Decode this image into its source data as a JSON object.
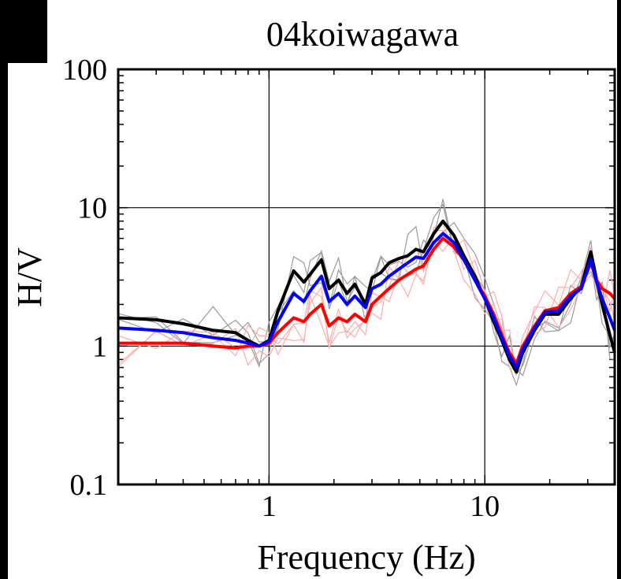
{
  "chart_data": {
    "type": "line",
    "title": "04koiwagawa",
    "xlabel": "Frequency (Hz)",
    "ylabel": "H/V",
    "x_scale": "log",
    "y_scale": "log",
    "xlim": [
      0.2,
      40
    ],
    "ylim": [
      0.1,
      100
    ],
    "x_ticks": [
      "1",
      "10"
    ],
    "y_ticks": [
      "0.1",
      "1",
      "10",
      "100"
    ],
    "grid": true,
    "series": [
      {
        "color": "#000000",
        "x": [
          0.2,
          0.3,
          0.4,
          0.55,
          0.7,
          0.8,
          0.9,
          1.0,
          1.1,
          1.3,
          1.45,
          1.55,
          1.75,
          1.9,
          2.1,
          2.3,
          2.5,
          2.8,
          3.0,
          3.3,
          3.6,
          4.0,
          4.4,
          4.8,
          5.2,
          5.8,
          6.4,
          7.2,
          8.0,
          9.0,
          10.0,
          11.0,
          12.0,
          13.0,
          14.0,
          15.0,
          17.0,
          19.0,
          22.0,
          25.0,
          28.0,
          31.0,
          33.0,
          35.0,
          38.0,
          40.0
        ],
        "y": [
          1.6,
          1.55,
          1.45,
          1.3,
          1.25,
          1.1,
          1.0,
          1.1,
          1.8,
          3.5,
          2.9,
          3.3,
          4.2,
          2.6,
          3.0,
          2.4,
          2.8,
          2.0,
          3.1,
          3.4,
          4.0,
          4.3,
          4.5,
          5.0,
          4.8,
          6.5,
          8.0,
          6.3,
          4.5,
          3.2,
          2.2,
          1.5,
          1.1,
          0.8,
          0.65,
          0.9,
          1.3,
          1.7,
          1.7,
          2.2,
          2.7,
          4.8,
          3.0,
          2.0,
          1.2,
          0.9
        ]
      },
      {
        "color": "#ff0000",
        "x": [
          0.2,
          0.3,
          0.4,
          0.55,
          0.7,
          0.8,
          0.9,
          1.0,
          1.1,
          1.3,
          1.45,
          1.55,
          1.75,
          1.9,
          2.1,
          2.3,
          2.5,
          2.8,
          3.0,
          3.3,
          3.6,
          4.0,
          4.4,
          4.8,
          5.2,
          5.8,
          6.4,
          7.2,
          8.0,
          9.0,
          10.0,
          11.0,
          12.0,
          13.0,
          14.0,
          15.0,
          17.0,
          19.0,
          22.0,
          25.0,
          28.0,
          31.0,
          33.0,
          35.0,
          38.0,
          40.0
        ],
        "y": [
          1.05,
          1.05,
          1.05,
          1.0,
          0.97,
          1.0,
          1.0,
          1.05,
          1.25,
          1.6,
          1.5,
          1.7,
          2.0,
          1.4,
          1.6,
          1.5,
          1.7,
          1.5,
          2.0,
          2.3,
          2.6,
          3.0,
          3.3,
          3.6,
          3.8,
          5.0,
          6.0,
          5.2,
          4.2,
          3.0,
          2.3,
          1.7,
          1.2,
          0.9,
          0.75,
          1.0,
          1.4,
          1.8,
          1.9,
          2.4,
          2.7,
          4.0,
          3.0,
          2.6,
          2.4,
          2.2
        ]
      },
      {
        "color": "#0000ff",
        "x": [
          0.2,
          0.3,
          0.4,
          0.55,
          0.7,
          0.8,
          0.9,
          1.0,
          1.1,
          1.3,
          1.45,
          1.55,
          1.75,
          1.9,
          2.1,
          2.3,
          2.5,
          2.8,
          3.0,
          3.3,
          3.6,
          4.0,
          4.4,
          4.8,
          5.2,
          5.8,
          6.4,
          7.2,
          8.0,
          9.0,
          10.0,
          11.0,
          12.0,
          13.0,
          14.0,
          15.0,
          17.0,
          19.0,
          22.0,
          25.0,
          28.0,
          31.0,
          33.0,
          35.0,
          38.0,
          40.0
        ],
        "y": [
          1.35,
          1.3,
          1.25,
          1.15,
          1.1,
          1.05,
          1.0,
          1.08,
          1.5,
          2.4,
          2.1,
          2.5,
          3.2,
          2.1,
          2.4,
          2.0,
          2.3,
          1.9,
          2.6,
          2.8,
          3.2,
          3.6,
          4.0,
          4.4,
          4.3,
          5.6,
          6.5,
          5.6,
          4.2,
          3.0,
          2.2,
          1.6,
          1.15,
          0.85,
          0.7,
          0.95,
          1.35,
          1.75,
          1.8,
          2.3,
          2.6,
          4.2,
          2.9,
          2.2,
          1.6,
          1.3
        ]
      }
    ]
  }
}
